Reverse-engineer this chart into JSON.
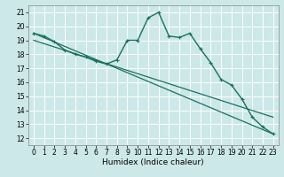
{
  "title": "",
  "xlabel": "Humidex (Indice chaleur)",
  "ylabel": "",
  "background_color": "#cce8e8",
  "grid_color": "#b0d4d4",
  "line_color": "#1a7060",
  "xlim": [
    -0.5,
    23.5
  ],
  "ylim": [
    11.5,
    21.5
  ],
  "yticks": [
    12,
    13,
    14,
    15,
    16,
    17,
    18,
    19,
    20,
    21
  ],
  "xticks": [
    0,
    1,
    2,
    3,
    4,
    5,
    6,
    7,
    8,
    9,
    10,
    11,
    12,
    13,
    14,
    15,
    16,
    17,
    18,
    19,
    20,
    21,
    22,
    23
  ],
  "series_main": {
    "x": [
      0,
      1,
      2,
      3,
      4,
      5,
      6,
      7,
      8,
      9,
      10,
      11,
      12,
      13,
      14,
      15,
      16,
      17,
      18,
      19,
      20,
      21,
      22,
      23
    ],
    "y": [
      19.5,
      19.3,
      18.9,
      18.3,
      18.0,
      17.8,
      17.5,
      17.3,
      17.6,
      19.0,
      19.0,
      20.6,
      21.0,
      19.3,
      19.2,
      19.5,
      18.4,
      17.4,
      16.2,
      15.8,
      14.8,
      13.5,
      12.8,
      12.3
    ]
  },
  "series_line1": {
    "x": [
      0,
      23
    ],
    "y": [
      19.5,
      12.3
    ]
  },
  "series_line2": {
    "x": [
      0,
      23
    ],
    "y": [
      19.0,
      13.5
    ]
  },
  "marker_size": 2.5,
  "linewidth_main": 1.0,
  "linewidth_lines": 0.9,
  "xlabel_fontsize": 6.5,
  "tick_fontsize": 5.5
}
